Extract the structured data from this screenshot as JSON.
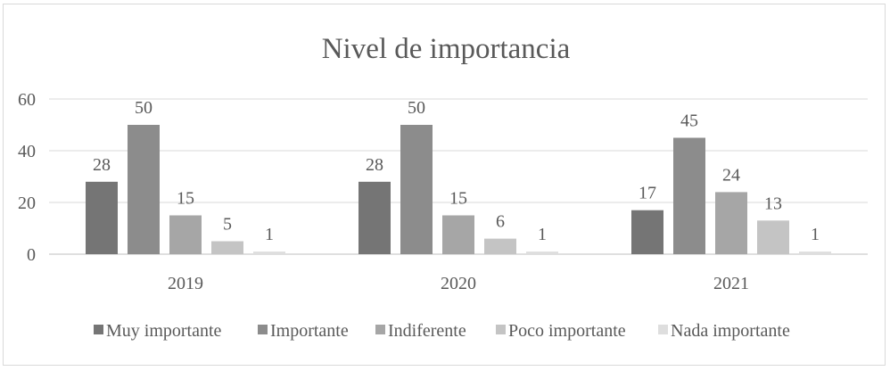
{
  "chart_data": {
    "type": "bar",
    "title": "Nivel de importancia",
    "xlabel": "",
    "ylabel": "",
    "categories": [
      "2019",
      "2020",
      "2021"
    ],
    "y_ticks": [
      "0",
      "20",
      "40",
      "60"
    ],
    "ylim": [
      0,
      60
    ],
    "grid": true,
    "legend_position": "bottom",
    "series": [
      {
        "name": "Muy importante",
        "values": [
          28,
          28,
          17
        ],
        "color": "#757575"
      },
      {
        "name": "Importante",
        "values": [
          50,
          50,
          45
        ],
        "color": "#8c8c8c"
      },
      {
        "name": "Indiferente",
        "values": [
          15,
          15,
          24
        ],
        "color": "#a6a6a6"
      },
      {
        "name": "Poco importante",
        "values": [
          5,
          6,
          13
        ],
        "color": "#c4c4c4"
      },
      {
        "name": "Nada importante",
        "values": [
          1,
          1,
          1
        ],
        "color": "#dedede"
      }
    ]
  }
}
